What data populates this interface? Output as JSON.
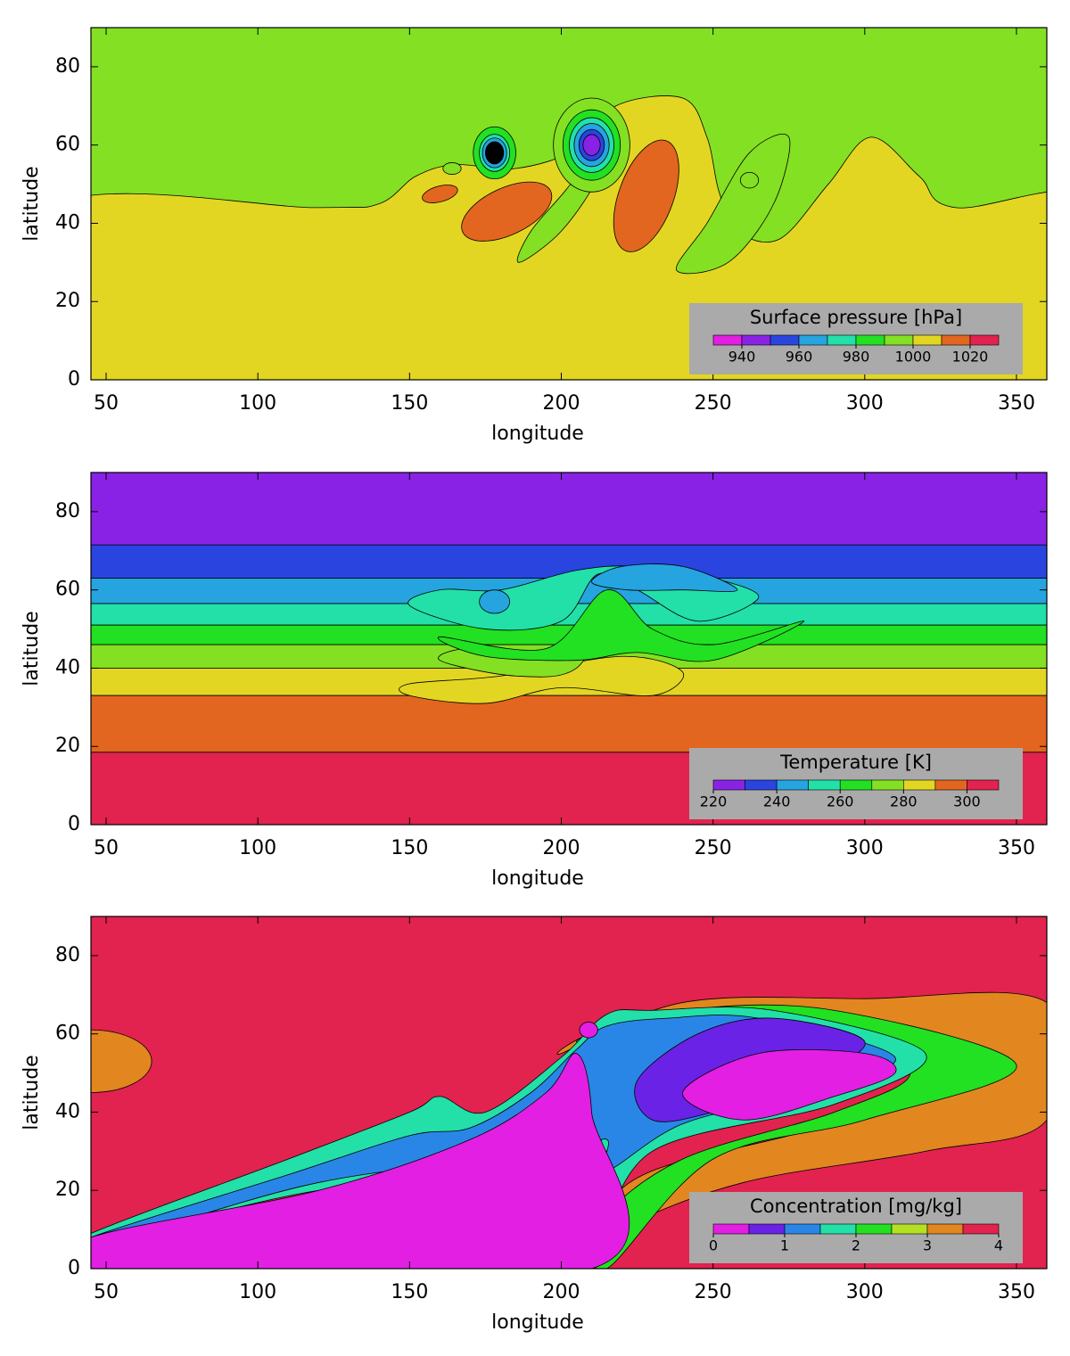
{
  "chart_data": [
    {
      "type": "contour",
      "xlabel": "longitude",
      "ylabel": "latitude",
      "xlim": [
        45,
        360
      ],
      "ylim": [
        0,
        90
      ],
      "xticks": [
        50,
        100,
        150,
        200,
        250,
        300,
        350
      ],
      "yticks": [
        0,
        20,
        40,
        60,
        80
      ],
      "colorbar": {
        "title": "Surface pressure [hPa]",
        "levels": [
          930,
          940,
          950,
          960,
          970,
          980,
          990,
          1000,
          1010,
          1020,
          1030
        ],
        "colors": [
          "#e21fe2",
          "#8a22e6",
          "#2a44e0",
          "#25a4e0",
          "#22e0a8",
          "#22e022",
          "#84e022",
          "#e2d622",
          "#e2661f",
          "#e2224f"
        ],
        "ticks": [
          940,
          960,
          980,
          1000,
          1020
        ]
      }
    },
    {
      "type": "contour",
      "xlabel": "longitude",
      "ylabel": "latitude",
      "xlim": [
        45,
        360
      ],
      "ylim": [
        0,
        90
      ],
      "xticks": [
        50,
        100,
        150,
        200,
        250,
        300,
        350
      ],
      "yticks": [
        0,
        20,
        40,
        60,
        80
      ],
      "colorbar": {
        "title": "Temperature [K]",
        "levels": [
          220,
          230,
          240,
          250,
          260,
          270,
          280,
          290,
          300,
          310
        ],
        "colors": [
          "#8a22e6",
          "#2a44e0",
          "#25a4e0",
          "#22e0a8",
          "#22e022",
          "#84e022",
          "#e2d622",
          "#e2661f",
          "#e2224f"
        ],
        "ticks": [
          220,
          240,
          260,
          280,
          300
        ]
      }
    },
    {
      "type": "contour",
      "xlabel": "longitude",
      "ylabel": "latitude",
      "xlim": [
        45,
        360
      ],
      "ylim": [
        0,
        90
      ],
      "xticks": [
        50,
        100,
        150,
        200,
        250,
        300,
        350
      ],
      "yticks": [
        0,
        20,
        40,
        60,
        80
      ],
      "colorbar": {
        "title": "Concentration [mg/kg]",
        "levels": [
          0,
          0.5,
          1,
          1.5,
          2,
          2.5,
          3,
          3.5,
          4
        ],
        "colors": [
          "#e21fe2",
          "#6a22e6",
          "#2a86e6",
          "#22e0a8",
          "#22e022",
          "#b4e022",
          "#e2861f",
          "#e2224f"
        ],
        "ticks": [
          0,
          1,
          2,
          3,
          4
        ]
      }
    }
  ]
}
